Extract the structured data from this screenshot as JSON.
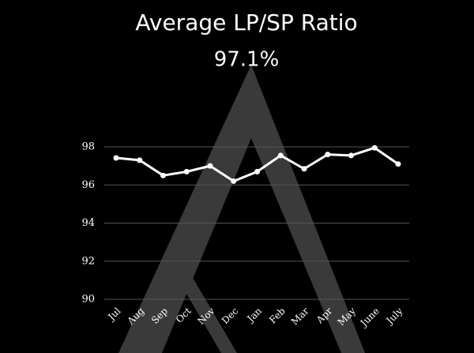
{
  "chart_data": {
    "type": "line",
    "title": "Average LP/SP Ratio",
    "subtitle": "97.1%",
    "categories": [
      "Jul",
      "Aug",
      "Sep",
      "Oct",
      "Nov",
      "Dec",
      "Jan",
      "Feb",
      "Mar",
      "Apr",
      "May",
      "June",
      "July"
    ],
    "series": [
      {
        "color": "#ffffff",
        "values": [
          97.42,
          97.3,
          96.5,
          96.7,
          97.0,
          96.2,
          96.7,
          97.55,
          96.85,
          97.6,
          97.55,
          97.95,
          97.1
        ]
      }
    ],
    "ylim": [
      90,
      98
    ],
    "yticks": [
      90,
      92,
      94,
      96,
      98
    ],
    "grid": true
  }
}
